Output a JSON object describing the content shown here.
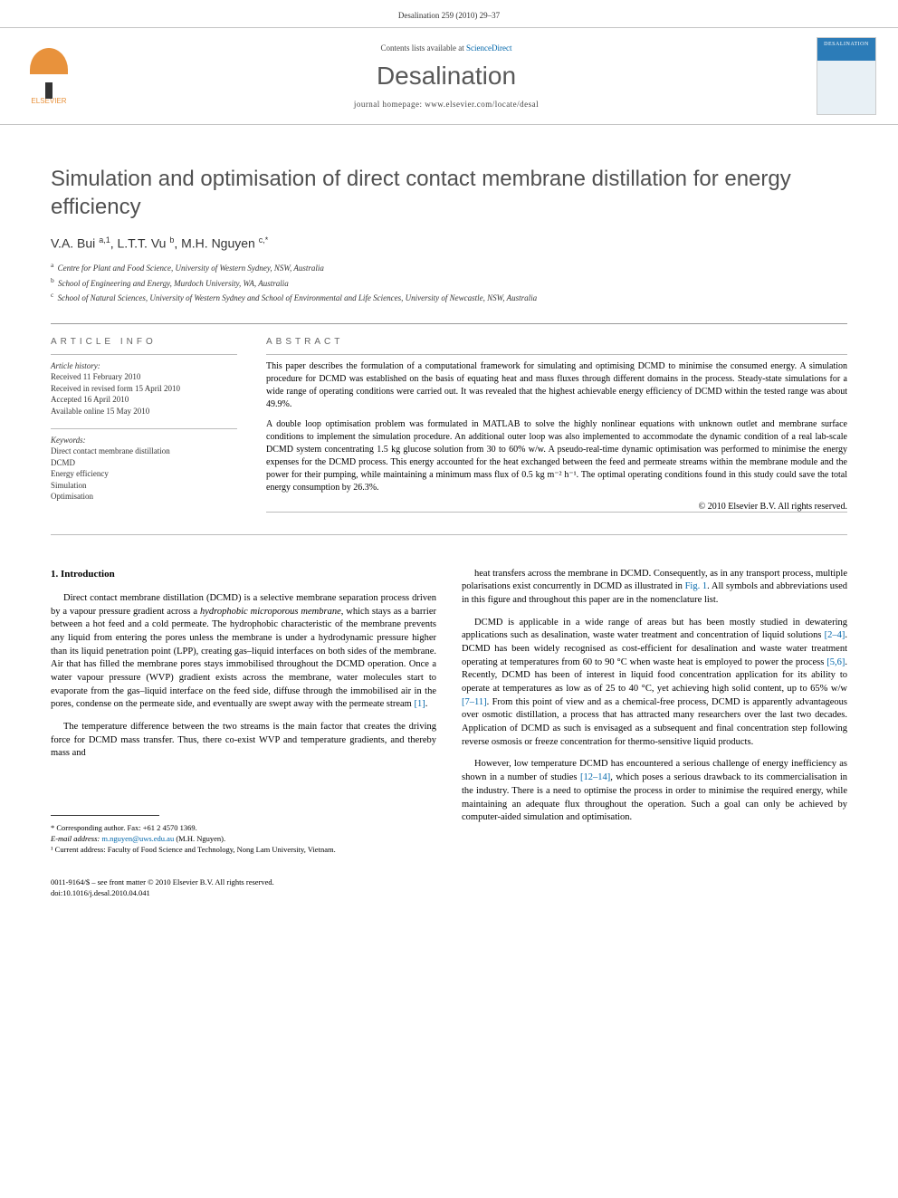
{
  "header": {
    "citation": "Desalination 259 (2010) 29–37"
  },
  "masthead": {
    "publisher": "ELSEVIER",
    "contents_prefix": "Contents lists available at ",
    "contents_link": "ScienceDirect",
    "journal_name": "Desalination",
    "homepage_prefix": "journal homepage: ",
    "homepage_url": "www.elsevier.com/locate/desal",
    "cover_label": "DESALINATION"
  },
  "article": {
    "title": "Simulation and optimisation of direct contact membrane distillation for energy efficiency",
    "authors_html": "V.A. Bui <sup>a,1</sup>, L.T.T. Vu <sup>b</sup>, M.H. Nguyen <sup>c,*</sup>",
    "affiliations": [
      {
        "sup": "a",
        "text": "Centre for Plant and Food Science, University of Western Sydney, NSW, Australia"
      },
      {
        "sup": "b",
        "text": "School of Engineering and Energy, Murdoch University, WA, Australia"
      },
      {
        "sup": "c",
        "text": "School of Natural Sciences, University of Western Sydney and School of Environmental and Life Sciences, University of Newcastle, NSW, Australia"
      }
    ]
  },
  "article_info": {
    "heading": "ARTICLE INFO",
    "history_label": "Article history:",
    "history": [
      "Received 11 February 2010",
      "Received in revised form 15 April 2010",
      "Accepted 16 April 2010",
      "Available online 15 May 2010"
    ],
    "keywords_label": "Keywords:",
    "keywords": [
      "Direct contact membrane distillation",
      "DCMD",
      "Energy efficiency",
      "Simulation",
      "Optimisation"
    ]
  },
  "abstract": {
    "heading": "ABSTRACT",
    "para1": "This paper describes the formulation of a computational framework for simulating and optimising DCMD to minimise the consumed energy. A simulation procedure for DCMD was established on the basis of equating heat and mass fluxes through different domains in the process. Steady-state simulations for a wide range of operating conditions were carried out. It was revealed that the highest achievable energy efficiency of DCMD within the tested range was about 49.9%.",
    "para2": "A double loop optimisation problem was formulated in MATLAB to solve the highly nonlinear equations with unknown outlet and membrane surface conditions to implement the simulation procedure. An additional outer loop was also implemented to accommodate the dynamic condition of a real lab-scale DCMD system concentrating 1.5 kg glucose solution from 30 to 60% w/w. A pseudo-real-time dynamic optimisation was performed to minimise the energy expenses for the DCMD process. This energy accounted for the heat exchanged between the feed and permeate streams within the membrane module and the power for their pumping, while maintaining a minimum mass flux of 0.5 kg m⁻² h⁻¹. The optimal operating conditions found in this study could save the total energy consumption by 26.3%.",
    "copyright": "© 2010 Elsevier B.V. All rights reserved."
  },
  "body": {
    "section_heading": "1. Introduction",
    "col1": {
      "p1": "Direct contact membrane distillation (DCMD) is a selective membrane separation process driven by a vapour pressure gradient across a hydrophobic microporous membrane, which stays as a barrier between a hot feed and a cold permeate. The hydrophobic characteristic of the membrane prevents any liquid from entering the pores unless the membrane is under a hydrodynamic pressure higher than its liquid penetration point (LPP), creating gas–liquid interfaces on both sides of the membrane. Air that has filled the membrane pores stays immobilised throughout the DCMD operation. Once a water vapour pressure (WVP) gradient exists across the membrane, water molecules start to evaporate from the gas–liquid interface on the feed side, diffuse through the immobilised air in the pores, condense on the permeate side, and eventually are swept away with the permeate stream [1].",
      "p2": "The temperature difference between the two streams is the main factor that creates the driving force for DCMD mass transfer. Thus, there co-exist WVP and temperature gradients, and thereby mass and"
    },
    "col2": {
      "p1": "heat transfers across the membrane in DCMD. Consequently, as in any transport process, multiple polarisations exist concurrently in DCMD as illustrated in Fig. 1. All symbols and abbreviations used in this figure and throughout this paper are in the nomenclature list.",
      "p2": "DCMD is applicable in a wide range of areas but has been mostly studied in dewatering applications such as desalination, waste water treatment and concentration of liquid solutions [2–4]. DCMD has been widely recognised as cost-efficient for desalination and waste water treatment operating at temperatures from 60 to 90 °C when waste heat is employed to power the process [5,6]. Recently, DCMD has been of interest in liquid food concentration application for its ability to operate at temperatures as low as of 25 to 40 °C, yet achieving high solid content, up to 65% w/w [7–11]. From this point of view and as a chemical-free process, DCMD is apparently advantageous over osmotic distillation, a process that has attracted many researchers over the last two decades. Application of DCMD as such is envisaged as a subsequent and final concentration step following reverse osmosis or freeze concentration for thermo-sensitive liquid products.",
      "p3": "However, low temperature DCMD has encountered a serious challenge of energy inefficiency as shown in a number of studies [12–14], which poses a serious drawback to its commercialisation in the industry. There is a need to optimise the process in order to minimise the required energy, while maintaining an adequate flux throughout the operation. Such a goal can only be achieved by computer-aided simulation and optimisation."
    }
  },
  "footnotes": {
    "correspondence": "* Corresponding author. Fax: +61 2 4570 1369.",
    "email_label": "E-mail address:",
    "email": "m.nguyen@uws.edu.au",
    "email_attribution": " (M.H. Nguyen).",
    "note1": "¹ Current address: Faculty of Food Science and Technology, Nong Lam University, Vietnam."
  },
  "footer": {
    "line1": "0011-9164/$ – see front matter © 2010 Elsevier B.V. All rights reserved.",
    "line2": "doi:10.1016/j.desal.2010.04.041"
  },
  "refs": {
    "r1": "[1]",
    "r24": "[2–4]",
    "r56": "[5,6]",
    "r711": "[7–11]",
    "r1214": "[12–14]",
    "fig1": "Fig. 1"
  },
  "colors": {
    "link": "#0066aa",
    "heading_gray": "#505050",
    "publisher_orange": "#e8923c",
    "cover_blue": "#2c7cb8"
  }
}
